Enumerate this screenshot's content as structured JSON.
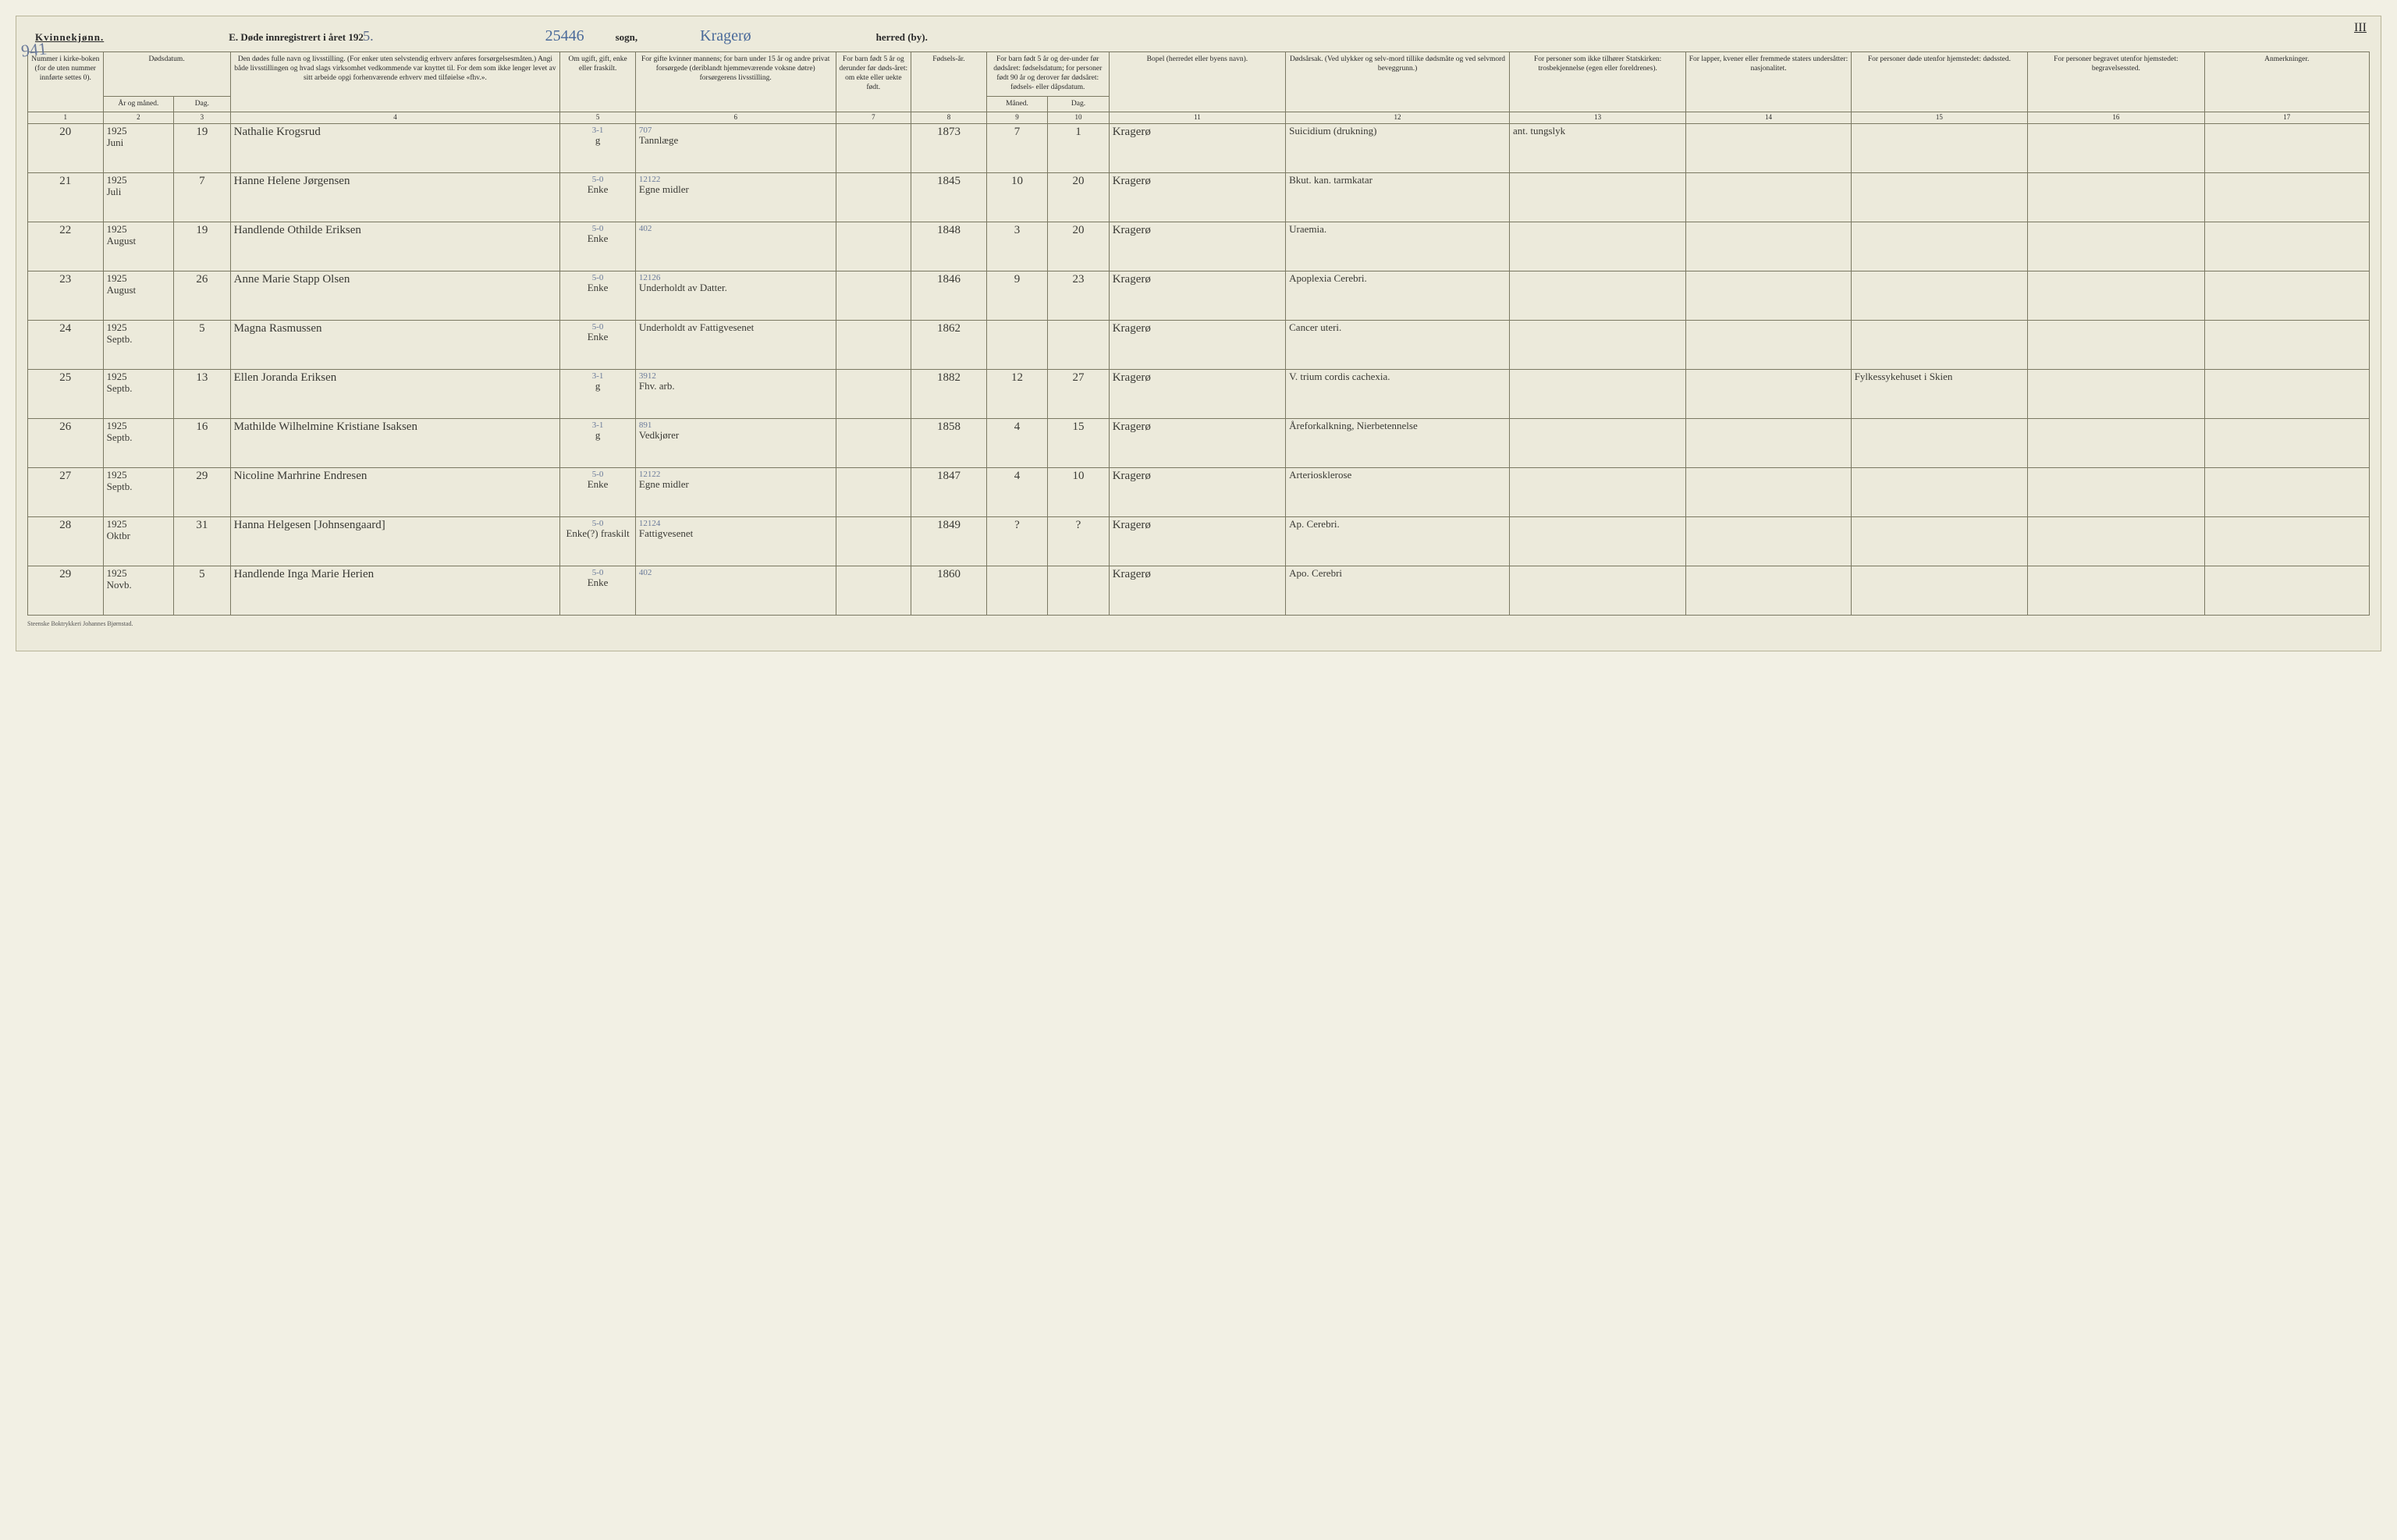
{
  "header": {
    "gender_label": "Kvinnekjønn.",
    "title_prefix": "E.  Døde innregistrert i året 192",
    "year_suffix": "5.",
    "sogn_number": "25446",
    "sogn_label": "sogn,",
    "sogn_name": "Kragerø",
    "herred_label": "herred (by).",
    "page_top_right": "III",
    "page_top_left": "941"
  },
  "columns": {
    "c1": "Nummer i kirke-boken (for de uten nummer innførte settes 0).",
    "c2_group": "Dødsdatum.",
    "c2": "År og måned.",
    "c3": "Dag.",
    "c4": "Den dødes fulle navn og livsstilling. (For enker uten selvstendig erhverv anføres forsørgelsesmåten.) Angi både livsstillingen og hvad slags virksomhet vedkommende var knyttet til. For dem som ikke lenger levet av sitt arbeide opgi forhenværende erhverv med tilføielse «fhv.».",
    "c5": "Om ugift, gift, enke eller fraskilt.",
    "c6": "For gifte kvinner mannens; for barn under 15 år og andre privat forsørgede (deriblandt hjemmeværende voksne døtre) forsørgerens livsstilling.",
    "c7": "For barn født 5 år og derunder før døds-året: om ekte eller uekte født.",
    "c8": "Fødsels-år.",
    "c9_group": "For barn født 5 år og der-under før dødsåret: fødselsdatum; for personer født 90 år og derover før dødsåret: fødsels- eller dåpsdatum.",
    "c9": "Måned.",
    "c10": "Dag.",
    "c11": "Bopel (herredet eller byens navn).",
    "c12": "Dødsårsak. (Ved ulykker og selv-mord tillike dødsmåte og ved selvmord beveggrunn.)",
    "c13": "For personer som ikke tilhører Statskirken: trosbekjennelse (egen eller foreldrenes).",
    "c14": "For lapper, kvener eller fremmede staters undersåtter: nasjonalitet.",
    "c15": "For personer døde utenfor hjemstedet: dødssted.",
    "c16": "For personer begravet utenfor hjemstedet: begravelsessted.",
    "c17": "Anmerkninger.",
    "n1": "1",
    "n2": "2",
    "n3": "3",
    "n4": "4",
    "n5": "5",
    "n6": "6",
    "n7": "7",
    "n8": "8",
    "n9": "9",
    "n10": "10",
    "n11": "11",
    "n12": "12",
    "n13": "13",
    "n14": "14",
    "n15": "15",
    "n16": "16",
    "n17": "17"
  },
  "rows": [
    {
      "no": "20",
      "ym": "1925 Juni",
      "day": "19",
      "name": "Nathalie Krogsrud",
      "status_sub": "3-1",
      "status": "g",
      "spouse_sub": "707",
      "spouse": "Tannlæge",
      "c7": "",
      "birth": "1873",
      "bm": "7",
      "bd": "1",
      "bopel": "Kragerø",
      "cause": "Suicidium (drukning)",
      "c13": "ant. tungslyk",
      "c14": "",
      "c15": "",
      "c16": "",
      "c17": ""
    },
    {
      "no": "21",
      "ym": "1925 Juli",
      "day": "7",
      "name": "Hanne Helene Jørgensen",
      "status_sub": "5-0",
      "status": "Enke",
      "spouse_sub": "12122",
      "spouse": "Egne midler",
      "c7": "",
      "birth": "1845",
      "bm": "10",
      "bd": "20",
      "bopel": "Kragerø",
      "cause": "Bkut. kan. tarmkatar",
      "c13": "",
      "c14": "",
      "c15": "",
      "c16": "",
      "c17": ""
    },
    {
      "no": "22",
      "ym": "1925 August",
      "day": "19",
      "name": "Handlende Othilde Eriksen",
      "status_sub": "5-0",
      "status": "Enke",
      "spouse_sub": "402",
      "spouse": "",
      "c7": "",
      "birth": "1848",
      "bm": "3",
      "bd": "20",
      "bopel": "Kragerø",
      "cause": "Uraemia.",
      "c13": "",
      "c14": "",
      "c15": "",
      "c16": "",
      "c17": ""
    },
    {
      "no": "23",
      "ym": "1925 August",
      "day": "26",
      "name": "Anne Marie Stapp Olsen",
      "status_sub": "5-0",
      "status": "Enke",
      "spouse_sub": "12126",
      "spouse": "Underholdt av Datter.",
      "c7": "",
      "birth": "1846",
      "bm": "9",
      "bd": "23",
      "bopel": "Kragerø",
      "cause": "Apoplexia Cerebri.",
      "c13": "",
      "c14": "",
      "c15": "",
      "c16": "",
      "c17": ""
    },
    {
      "no": "24",
      "ym": "1925 Septb.",
      "day": "5",
      "name": "Magna Rasmussen",
      "status_sub": "5-0",
      "status": "Enke",
      "spouse_sub": "",
      "spouse": "Underholdt av Fattigvesenet",
      "c7": "",
      "birth": "1862",
      "bm": "",
      "bd": "",
      "bopel": "Kragerø",
      "cause": "Cancer uteri.",
      "c13": "",
      "c14": "",
      "c15": "",
      "c16": "",
      "c17": ""
    },
    {
      "no": "25",
      "ym": "1925 Septb.",
      "day": "13",
      "name": "Ellen Joranda Eriksen",
      "status_sub": "3-1",
      "status": "g",
      "spouse_sub": "3912",
      "spouse": "Fhv. arb.",
      "c7": "",
      "birth": "1882",
      "bm": "12",
      "bd": "27",
      "bopel": "Kragerø",
      "cause": "V. trium cordis cachexia.",
      "c13": "",
      "c14": "",
      "c15": "Fylkessykehuset i Skien",
      "c16": "",
      "c17": ""
    },
    {
      "no": "26",
      "ym": "1925 Septb.",
      "day": "16",
      "name": "Mathilde Wilhelmine Kristiane Isaksen",
      "status_sub": "3-1",
      "status": "g",
      "spouse_sub": "891",
      "spouse": "Vedkjører",
      "c7": "",
      "birth": "1858",
      "bm": "4",
      "bd": "15",
      "bopel": "Kragerø",
      "cause": "Åreforkalkning, Nierbetennelse",
      "c13": "",
      "c14": "",
      "c15": "",
      "c16": "",
      "c17": ""
    },
    {
      "no": "27",
      "ym": "1925 Septb.",
      "day": "29",
      "name": "Nicoline Marhrine Endresen",
      "status_sub": "5-0",
      "status": "Enke",
      "spouse_sub": "12122",
      "spouse": "Egne midler",
      "c7": "",
      "birth": "1847",
      "bm": "4",
      "bd": "10",
      "bopel": "Kragerø",
      "cause": "Arteriosklerose",
      "c13": "",
      "c14": "",
      "c15": "",
      "c16": "",
      "c17": ""
    },
    {
      "no": "28",
      "ym": "1925 Oktbr",
      "day": "31",
      "name": "Hanna Helgesen [Johnsengaard]",
      "status_sub": "5-0",
      "status": "Enke(?) fraskilt",
      "spouse_sub": "12124",
      "spouse": "Fattigvesenet",
      "c7": "",
      "birth": "1849",
      "bm": "?",
      "bd": "?",
      "bopel": "Kragerø",
      "cause": "Ap. Cerebri.",
      "c13": "",
      "c14": "",
      "c15": "",
      "c16": "",
      "c17": ""
    },
    {
      "no": "29",
      "ym": "1925 Novb.",
      "day": "5",
      "name": "Handlende Inga Marie Herien",
      "status_sub": "5-0",
      "status": "Enke",
      "spouse_sub": "402",
      "spouse": "",
      "c7": "",
      "birth": "1860",
      "bm": "",
      "bd": "",
      "bopel": "Kragerø",
      "cause": "Apo. Cerebri",
      "c13": "",
      "c14": "",
      "c15": "",
      "c16": "",
      "c17": ""
    }
  ],
  "footer": "Steenske Boktrykkeri Johannes Bjørnstad."
}
